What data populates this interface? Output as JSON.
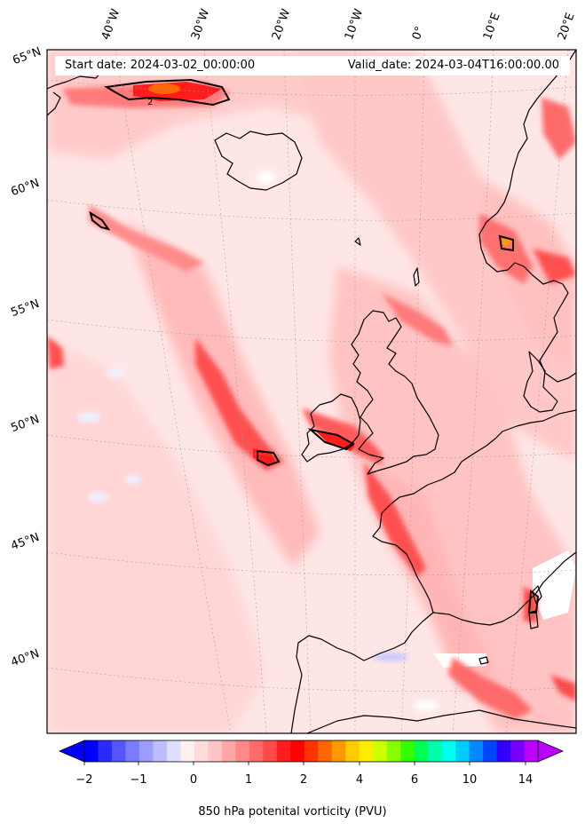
{
  "header": {
    "start_date": "Start date: 2024-03-02_00:00:00",
    "valid_date": "Valid_date: 2024-03-04T16:00:00.00"
  },
  "longitude_labels": [
    "40°W",
    "30°W",
    "20°W",
    "10°W",
    "0°",
    "10°E",
    "20°E"
  ],
  "latitude_labels": [
    "65°N",
    "60°N",
    "55°N",
    "50°N",
    "45°N",
    "40°N"
  ],
  "colorbar": {
    "title": "850 hPa potenital vorticity (PVU)",
    "tick_labels": [
      "−2",
      "−1",
      "0",
      "1",
      "2",
      "4",
      "6",
      "10",
      "14"
    ],
    "colors": [
      "#0000ff",
      "#2a2aff",
      "#5555ff",
      "#7b7bff",
      "#9d9dff",
      "#bdbdff",
      "#dedeff",
      "#fff0f0",
      "#ffdcdc",
      "#ffc4c4",
      "#ffa6a6",
      "#ff8888",
      "#ff6a6a",
      "#ff4a4a",
      "#ff1c1c",
      "#ff0000",
      "#ff3300",
      "#ff6600",
      "#ff9900",
      "#ffcc00",
      "#ffee00",
      "#ccff00",
      "#88ff00",
      "#33ff00",
      "#00ff55",
      "#00ffaa",
      "#00ffee",
      "#00ccff",
      "#0088ff",
      "#0044ff",
      "#3300ff",
      "#7700ff",
      "#bb00ff"
    ]
  },
  "contour_label": "2"
}
